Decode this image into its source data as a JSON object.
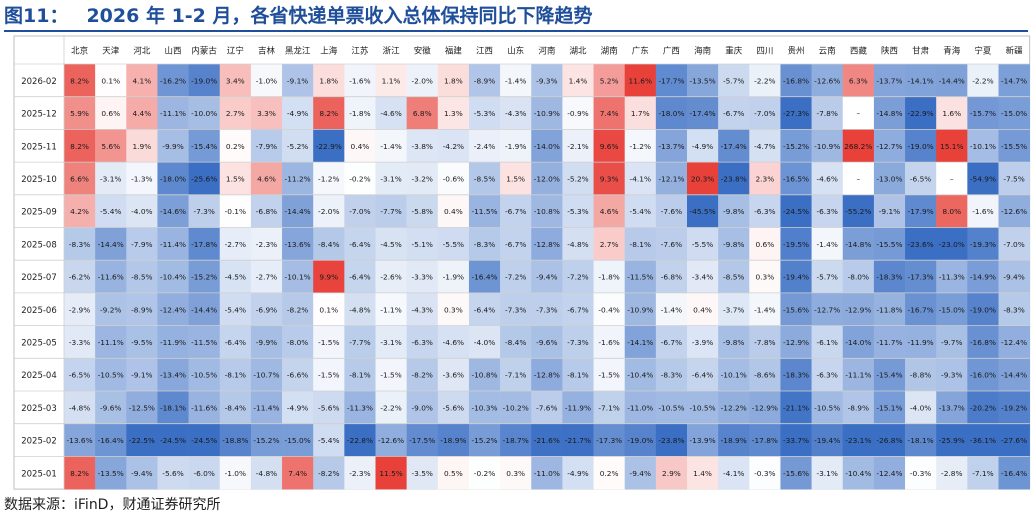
{
  "figure": {
    "label": "图11：",
    "title": "2026 年 1-2 月，各省快递单票收入总体保持同比下降趋势"
  },
  "source": "数据来源：iFinD，财通证券研究所",
  "colors": {
    "title": "#1f4e9a",
    "positive": "#e8413a",
    "negative": "#3b6fc4",
    "neutral": "#ffffff"
  },
  "chart_data": {
    "type": "heatmap",
    "unit": "%",
    "columns": [
      "北京",
      "天津",
      "河北",
      "山西",
      "内蒙古",
      "辽宁",
      "吉林",
      "黑龙江",
      "上海",
      "江苏",
      "浙江",
      "安徽",
      "福建",
      "江西",
      "山东",
      "河南",
      "湖北",
      "湖南",
      "广东",
      "广西",
      "海南",
      "重庆",
      "四川",
      "贵州",
      "云南",
      "西藏",
      "陕西",
      "甘肃",
      "青海",
      "宁夏",
      "新疆"
    ],
    "rows": [
      "2026-02",
      "2025-12",
      "2025-11",
      "2025-10",
      "2025-09",
      "2025-08",
      "2025-07",
      "2025-06",
      "2025-05",
      "2025-04",
      "2025-03",
      "2025-02",
      "2025-01"
    ],
    "values": [
      [
        8.2,
        0.1,
        4.1,
        -16.2,
        -19.0,
        3.4,
        -1.0,
        -9.1,
        1.8,
        -1.6,
        1.1,
        -2.0,
        1.8,
        -8.9,
        -1.4,
        -9.3,
        1.4,
        5.2,
        11.6,
        -17.7,
        -13.5,
        -5.7,
        -2.2,
        -16.8,
        -12.6,
        6.3,
        -13.7,
        -14.1,
        -14.4,
        -2.2,
        -14.7
      ],
      [
        5.9,
        0.6,
        4.4,
        -11.1,
        -10.0,
        2.7,
        3.3,
        -4.9,
        8.2,
        -1.8,
        -4.6,
        6.8,
        1.3,
        -5.3,
        -4.3,
        -10.9,
        -0.9,
        7.4,
        1.7,
        -18.0,
        -17.4,
        -6.7,
        -7.0,
        -27.3,
        -7.8,
        null,
        -14.8,
        -22.9,
        1.6,
        -15.7,
        -15.0
      ],
      [
        8.2,
        5.6,
        1.9,
        -9.9,
        -15.4,
        0.2,
        -7.9,
        -5.2,
        -22.9,
        0.4,
        -1.4,
        -3.8,
        -4.2,
        -2.4,
        -1.9,
        -14.0,
        -2.1,
        9.6,
        -1.2,
        -13.7,
        -4.9,
        -17.4,
        -4.7,
        -15.2,
        -10.9,
        268.2,
        -12.7,
        -19.0,
        15.1,
        -10.1,
        -15.5
      ],
      [
        6.6,
        -3.1,
        -1.3,
        -18.0,
        -25.6,
        1.5,
        4.6,
        -11.2,
        -1.2,
        -0.2,
        -3.1,
        -3.2,
        -0.6,
        -8.5,
        1.5,
        -12.0,
        -5.2,
        9.3,
        -4.1,
        -12.1,
        20.3,
        -23.8,
        2.3,
        -16.5,
        -4.6,
        null,
        -13.0,
        -6.5,
        null,
        -54.9,
        -7.5
      ],
      [
        4.2,
        -5.4,
        -4.0,
        -14.6,
        -7.3,
        -0.1,
        -6.8,
        -14.4,
        -2.0,
        -7.0,
        -7.7,
        -5.8,
        0.4,
        -11.5,
        -6.7,
        -10.8,
        -5.3,
        4.6,
        -5.4,
        -7.6,
        -45.5,
        -9.8,
        -6.3,
        -24.5,
        -6.3,
        -55.2,
        -9.1,
        -17.9,
        8.0,
        -1.6,
        -12.6
      ],
      [
        -8.3,
        -14.4,
        -7.9,
        -11.4,
        -17.8,
        -2.7,
        -2.3,
        -13.6,
        -8.4,
        -6.4,
        -4.5,
        -5.1,
        -5.5,
        -8.3,
        -6.7,
        -12.8,
        -4.8,
        2.7,
        -8.1,
        -7.6,
        -5.5,
        -9.8,
        0.6,
        -19.5,
        -1.4,
        -14.8,
        -15.5,
        -23.6,
        -23.0,
        -19.3,
        -7.0
      ],
      [
        -6.2,
        -11.6,
        -8.5,
        -10.4,
        -15.2,
        -4.5,
        -2.7,
        -10.1,
        9.9,
        -6.4,
        -2.6,
        -3.3,
        -1.9,
        -16.4,
        -7.2,
        -9.4,
        -7.2,
        -1.8,
        -11.5,
        -6.8,
        -3.4,
        -8.5,
        0.3,
        -19.4,
        -5.7,
        -8.0,
        -18.3,
        -17.3,
        -11.3,
        -14.9,
        -9.4
      ],
      [
        -2.9,
        -9.2,
        -8.9,
        -12.4,
        -14.4,
        -5.4,
        -6.9,
        -8.2,
        0.1,
        -4.8,
        -1.1,
        -4.3,
        0.3,
        -6.4,
        -7.3,
        -7.3,
        -6.7,
        -0.4,
        -10.9,
        -1.4,
        0.4,
        -3.7,
        -1.4,
        -15.6,
        -12.7,
        -12.9,
        -11.8,
        -16.7,
        -15.0,
        -19.0,
        -8.3
      ],
      [
        -3.3,
        -11.1,
        -9.5,
        -11.9,
        -11.5,
        -6.4,
        -9.9,
        -8.0,
        -1.5,
        -7.7,
        -3.1,
        -6.3,
        -4.6,
        -4.0,
        -8.4,
        -9.6,
        -7.3,
        -1.6,
        -14.1,
        -6.7,
        -3.9,
        -9.8,
        -7.8,
        -12.9,
        -6.1,
        -14.0,
        -11.7,
        -11.9,
        -9.7,
        -16.8,
        -12.4
      ],
      [
        -6.5,
        -10.5,
        -9.1,
        -13.4,
        -10.5,
        -8.1,
        -10.7,
        -6.6,
        -1.5,
        -8.1,
        -1.5,
        -8.2,
        -3.6,
        -10.8,
        -7.1,
        -12.8,
        -8.1,
        -1.5,
        -10.4,
        -8.3,
        -6.4,
        -10.1,
        -8.6,
        -18.3,
        -6.3,
        -11.1,
        -15.4,
        -8.8,
        -9.3,
        -16.0,
        -14.4
      ],
      [
        -4.8,
        -9.6,
        -12.5,
        -18.1,
        -11.6,
        -8.4,
        -11.4,
        -4.9,
        -5.6,
        -11.3,
        -2.2,
        -9.0,
        -5.6,
        -10.3,
        -10.2,
        -7.6,
        -11.9,
        -7.1,
        -11.0,
        -10.5,
        -10.5,
        -12.2,
        -12.9,
        -21.1,
        -10.5,
        -8.9,
        -15.1,
        -4.0,
        -13.7,
        -20.2,
        -19.2
      ],
      [
        -13.6,
        -16.4,
        -22.5,
        -24.5,
        -24.5,
        -18.8,
        -15.2,
        -15.0,
        -5.4,
        -22.8,
        -12.6,
        -17.5,
        -18.9,
        -15.2,
        -18.7,
        -21.6,
        -21.7,
        -17.3,
        -19.0,
        -23.8,
        -13.9,
        -18.9,
        -17.8,
        -33.7,
        -19.4,
        -23.1,
        -26.8,
        -18.1,
        -25.9,
        -36.1,
        -27.6
      ],
      [
        8.2,
        -13.5,
        -9.4,
        -5.6,
        -6.0,
        -1.0,
        -4.8,
        7.4,
        -8.2,
        -2.3,
        11.5,
        -3.5,
        0.5,
        -0.2,
        0.3,
        -11.0,
        -4.9,
        0.2,
        -9.4,
        2.9,
        1.4,
        -4.1,
        -0.3,
        -15.6,
        -3.1,
        -10.4,
        -12.4,
        -0.3,
        -2.8,
        -7.1,
        -16.4
      ]
    ]
  }
}
